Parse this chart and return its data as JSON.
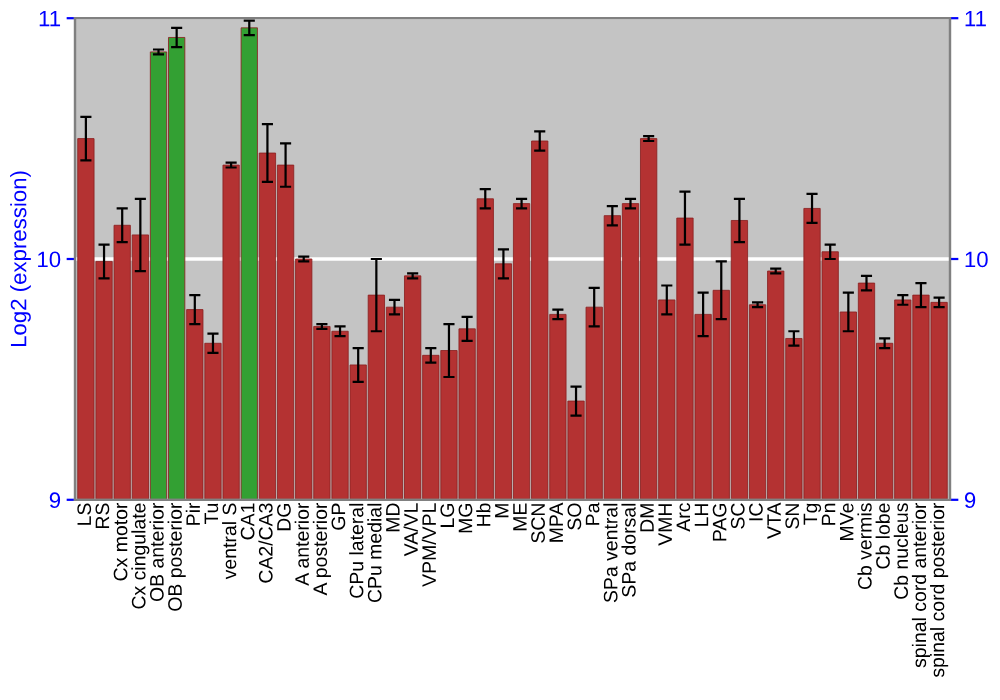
{
  "chart_data": {
    "type": "bar",
    "ylabel": "Log2 (expression)",
    "categories": [
      "LS",
      "RS",
      "Cx motor",
      "Cx cingulate",
      "OB anterior",
      "OB posterior",
      "Pir",
      "Tu",
      "ventral S",
      "CA1",
      "CA2/CA3",
      "DG",
      "A anterior",
      "A posterior",
      "GP",
      "CPu lateral",
      "CPu medial",
      "MD",
      "VA/VL",
      "VPM/VPL",
      "LG",
      "MG",
      "Hb",
      "M",
      "ME",
      "SCN",
      "MPA",
      "SO",
      "Pa",
      "SPa ventral",
      "SPa dorsal",
      "DM",
      "VMH",
      "Arc",
      "LH",
      "PAG",
      "SC",
      "IC",
      "VTA",
      "SN",
      "Tg",
      "Pn",
      "MVe",
      "Cb vermis",
      "Cb lobe",
      "Cb nucleus",
      "spinal cord anterior",
      "spinal cord posterior"
    ],
    "values": [
      10.5,
      9.99,
      10.14,
      10.1,
      10.86,
      10.92,
      9.79,
      9.65,
      10.39,
      10.96,
      10.44,
      10.39,
      10.0,
      9.72,
      9.7,
      9.56,
      9.85,
      9.8,
      9.93,
      9.6,
      9.62,
      9.71,
      10.25,
      9.98,
      10.23,
      10.49,
      9.77,
      9.41,
      9.8,
      10.18,
      10.23,
      10.5,
      9.83,
      10.17,
      9.77,
      9.87,
      10.16,
      9.81,
      9.95,
      9.67,
      10.21,
      10.03,
      9.78,
      9.9,
      9.65,
      9.83,
      9.85,
      9.82
    ],
    "errors": [
      0.09,
      0.07,
      0.07,
      0.15,
      0.01,
      0.04,
      0.06,
      0.04,
      0.01,
      0.03,
      0.12,
      0.09,
      0.01,
      0.01,
      0.02,
      0.07,
      0.15,
      0.03,
      0.01,
      0.03,
      0.11,
      0.05,
      0.04,
      0.06,
      0.02,
      0.04,
      0.02,
      0.06,
      0.08,
      0.04,
      0.02,
      0.01,
      0.06,
      0.11,
      0.09,
      0.12,
      0.09,
      0.01,
      0.01,
      0.03,
      0.06,
      0.03,
      0.08,
      0.03,
      0.02,
      0.02,
      0.05,
      0.02
    ],
    "colors": [
      "#b43232",
      "#b43232",
      "#b43232",
      "#b43232",
      "#33a033",
      "#33a033",
      "#b43232",
      "#b43232",
      "#b43232",
      "#33a033",
      "#b43232",
      "#b43232",
      "#b43232",
      "#b43232",
      "#b43232",
      "#b43232",
      "#b43232",
      "#b43232",
      "#b43232",
      "#b43232",
      "#b43232",
      "#b43232",
      "#b43232",
      "#b43232",
      "#b43232",
      "#b43232",
      "#b43232",
      "#b43232",
      "#b43232",
      "#b43232",
      "#b43232",
      "#b43232",
      "#b43232",
      "#b43232",
      "#b43232",
      "#b43232",
      "#b43232",
      "#b43232",
      "#b43232",
      "#b43232",
      "#b43232",
      "#b43232",
      "#b43232",
      "#b43232",
      "#b43232",
      "#b43232",
      "#b43232",
      "#b43232"
    ],
    "ylim": [
      9,
      11
    ],
    "yticks": [
      9,
      10,
      11
    ],
    "y2lim": [
      9,
      11
    ],
    "y2ticks": [
      9,
      10,
      11
    ],
    "grid": "y"
  }
}
